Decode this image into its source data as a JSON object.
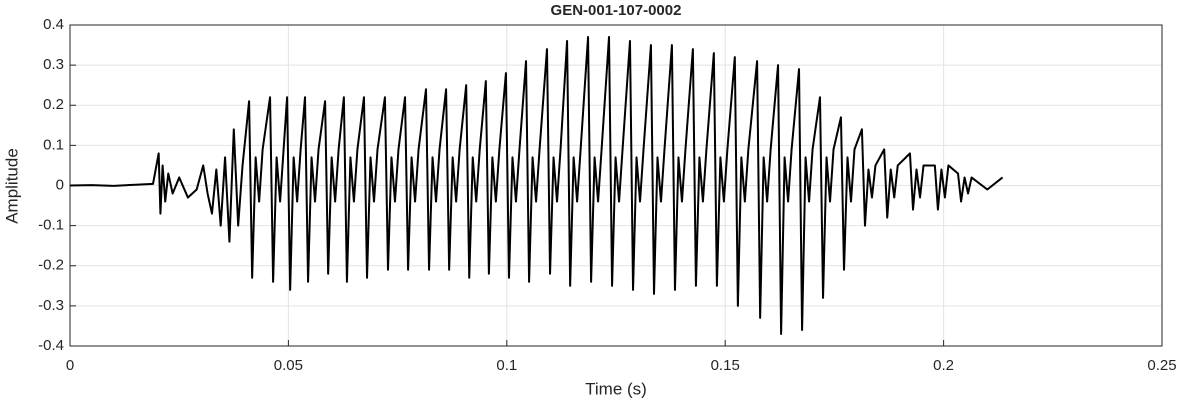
{
  "chart_data": {
    "type": "line",
    "title": "GEN-001-107-0002",
    "xlabel": "Time (s)",
    "ylabel": "Amplitude",
    "color": "#000000",
    "grid": true,
    "xlim": [
      0,
      0.25
    ],
    "xticks": [
      0,
      0.05,
      0.1,
      0.15,
      0.2,
      0.25
    ],
    "ylim": [
      -0.4,
      0.4
    ],
    "yticks": [
      -0.4,
      -0.3,
      -0.2,
      -0.1,
      0,
      0.1,
      0.2,
      0.3,
      0.4
    ],
    "x": [
      0,
      0.005,
      0.01,
      0.015,
      0.019,
      0.0203,
      0.0207,
      0.0212,
      0.0218,
      0.0225,
      0.0235,
      0.025,
      0.027,
      0.029,
      0.0305,
      0.0315,
      0.0325,
      0.0335,
      0.0345,
      0.0355,
      0.0365,
      0.0375,
      0.0385,
      0.0395,
      0.041,
      0.0417,
      0.0425,
      0.0433,
      0.0441,
      0.0458,
      0.0465,
      0.0473,
      0.0481,
      0.0489,
      0.0497,
      0.0504,
      0.0512,
      0.052,
      0.0528,
      0.0538,
      0.0545,
      0.0553,
      0.0561,
      0.0569,
      0.0584,
      0.0591,
      0.0599,
      0.0607,
      0.0615,
      0.0627,
      0.0634,
      0.0642,
      0.065,
      0.0658,
      0.0673,
      0.068,
      0.0688,
      0.0696,
      0.0704,
      0.0721,
      0.0728,
      0.0736,
      0.0744,
      0.0752,
      0.0767,
      0.0774,
      0.0782,
      0.079,
      0.0798,
      0.0815,
      0.0822,
      0.083,
      0.0838,
      0.0846,
      0.0861,
      0.0868,
      0.0876,
      0.0884,
      0.0892,
      0.0907,
      0.0914,
      0.0922,
      0.093,
      0.0938,
      0.0952,
      0.0959,
      0.0967,
      0.0975,
      0.0983,
      0.0998,
      0.1005,
      0.1013,
      0.1021,
      0.1029,
      0.1044,
      0.1051,
      0.1059,
      0.1067,
      0.1075,
      0.1092,
      0.1099,
      0.1107,
      0.1115,
      0.1123,
      0.1138,
      0.1145,
      0.1153,
      0.1161,
      0.1169,
      0.1186,
      0.1193,
      0.1201,
      0.1209,
      0.1217,
      0.1234,
      0.1241,
      0.1249,
      0.1257,
      0.1265,
      0.1282,
      0.1289,
      0.1297,
      0.1305,
      0.1313,
      0.133,
      0.1337,
      0.1345,
      0.1353,
      0.1361,
      0.1378,
      0.1385,
      0.1393,
      0.1401,
      0.1409,
      0.1426,
      0.1433,
      0.1441,
      0.1449,
      0.1457,
      0.1474,
      0.1481,
      0.1489,
      0.1497,
      0.1505,
      0.1522,
      0.1529,
      0.1537,
      0.1545,
      0.1553,
      0.1573,
      0.158,
      0.1588,
      0.1596,
      0.1604,
      0.1621,
      0.1628,
      0.1636,
      0.1644,
      0.1652,
      0.1669,
      0.1676,
      0.1684,
      0.1692,
      0.17,
      0.1717,
      0.1724,
      0.1732,
      0.174,
      0.1748,
      0.1765,
      0.1772,
      0.178,
      0.1788,
      0.1796,
      0.1813,
      0.182,
      0.1828,
      0.1836,
      0.1844,
      0.1864,
      0.1871,
      0.1879,
      0.1887,
      0.1895,
      0.1923,
      0.193,
      0.1938,
      0.1946,
      0.1954,
      0.198,
      0.1987,
      0.1995,
      0.2003,
      0.2011,
      0.2033,
      0.204,
      0.2048,
      0.2056,
      0.2064,
      0.21,
      0.2135
    ],
    "values": [
      0,
      0.001,
      -0.001,
      0.002,
      0.004,
      0.08,
      -0.07,
      0.05,
      -0.04,
      0.03,
      -0.02,
      0.02,
      -0.03,
      -0.01,
      0.05,
      -0.02,
      -0.07,
      0.04,
      -0.1,
      0.07,
      -0.14,
      0.14,
      -0.1,
      0.05,
      0.21,
      -0.23,
      0.07,
      -0.04,
      0.09,
      0.22,
      -0.24,
      0.07,
      -0.04,
      0.09,
      0.22,
      -0.26,
      0.07,
      -0.04,
      0.09,
      0.22,
      -0.24,
      0.07,
      -0.04,
      0.09,
      0.21,
      -0.22,
      0.07,
      -0.04,
      0.09,
      0.22,
      -0.24,
      0.07,
      -0.04,
      0.09,
      0.22,
      -0.23,
      0.07,
      -0.04,
      0.09,
      0.22,
      -0.21,
      0.07,
      -0.04,
      0.09,
      0.22,
      -0.21,
      0.07,
      -0.04,
      0.09,
      0.24,
      -0.21,
      0.07,
      -0.04,
      0.09,
      0.24,
      -0.21,
      0.07,
      -0.04,
      0.09,
      0.25,
      -0.23,
      0.07,
      -0.04,
      0.09,
      0.26,
      -0.22,
      0.07,
      -0.04,
      0.09,
      0.28,
      -0.23,
      0.07,
      -0.04,
      0.09,
      0.31,
      -0.24,
      0.07,
      -0.04,
      0.09,
      0.34,
      -0.22,
      0.07,
      -0.04,
      0.09,
      0.36,
      -0.25,
      0.07,
      -0.04,
      0.09,
      0.37,
      -0.24,
      0.07,
      -0.04,
      0.09,
      0.37,
      -0.25,
      0.07,
      -0.04,
      0.09,
      0.36,
      -0.26,
      0.07,
      -0.04,
      0.09,
      0.35,
      -0.27,
      0.07,
      -0.04,
      0.09,
      0.35,
      -0.26,
      0.07,
      -0.04,
      0.09,
      0.34,
      -0.25,
      0.07,
      -0.04,
      0.09,
      0.33,
      -0.25,
      0.07,
      -0.04,
      0.09,
      0.32,
      -0.3,
      0.07,
      -0.04,
      0.09,
      0.31,
      -0.33,
      0.07,
      -0.04,
      0.09,
      0.3,
      -0.37,
      0.07,
      -0.04,
      0.09,
      0.29,
      -0.36,
      0.07,
      -0.04,
      0.09,
      0.22,
      -0.28,
      0.07,
      -0.04,
      0.09,
      0.17,
      -0.21,
      0.07,
      -0.04,
      0.09,
      0.14,
      -0.1,
      0.04,
      -0.03,
      0.05,
      0.09,
      -0.08,
      0.04,
      -0.03,
      0.05,
      0.08,
      -0.06,
      0.04,
      -0.03,
      0.05,
      0.05,
      -0.06,
      0.04,
      -0.03,
      0.05,
      0.03,
      -0.04,
      0.02,
      -0.02,
      0.02,
      -0.01,
      0.02
    ]
  }
}
